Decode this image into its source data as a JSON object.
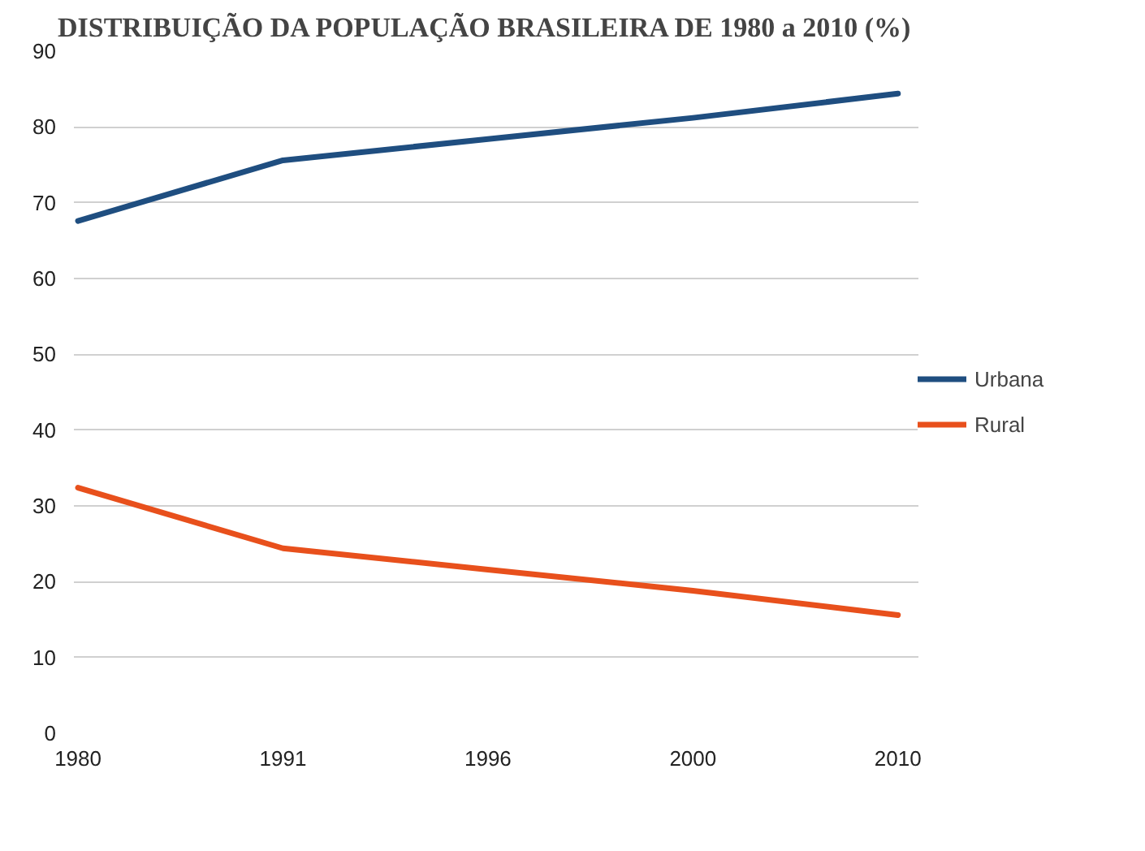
{
  "chart_data": {
    "type": "line",
    "title": "DISTRIBUIÇÃO DA POPULAÇÃO BRASILEIRA DE 1980 a 2010 (%)",
    "categories": [
      "1980",
      "1991",
      "1996",
      "2000",
      "2010"
    ],
    "series": [
      {
        "name": "Urbana",
        "color": "#1f4e80",
        "values": [
          67.6,
          75.6,
          78.4,
          81.2,
          84.4
        ]
      },
      {
        "name": "Rural",
        "color": "#e8501c",
        "values": [
          32.4,
          24.4,
          21.6,
          18.8,
          15.6
        ]
      }
    ],
    "ylim": [
      0,
      90
    ],
    "yticks": [
      0,
      10,
      20,
      30,
      40,
      50,
      60,
      70,
      80,
      90
    ],
    "grid": "y",
    "legend": "right",
    "marker": "none",
    "line_style": "solid"
  }
}
